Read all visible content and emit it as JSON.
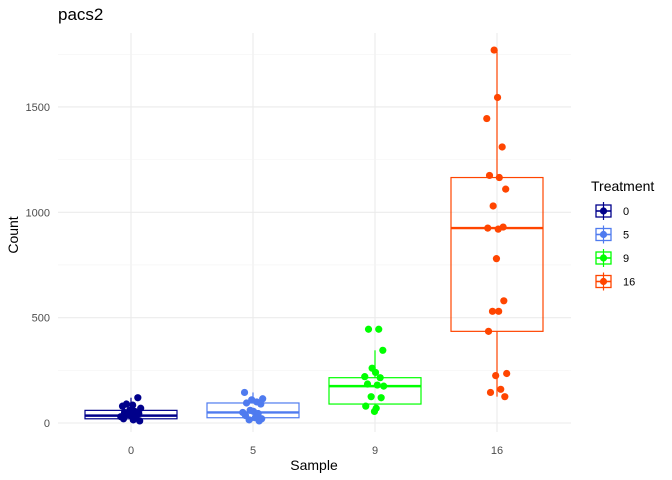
{
  "chart_data": {
    "type": "boxplot",
    "title": "pacs2",
    "xlabel": "Sample",
    "ylabel": "Count",
    "categories": [
      "0",
      "5",
      "9",
      "16"
    ],
    "y_ticks": [
      0,
      500,
      1000,
      1500
    ],
    "ylim": [
      -10,
      1790
    ],
    "grid": true,
    "legend": {
      "title": "Treatment",
      "position": "right",
      "entries": [
        "0",
        "5",
        "9",
        "16"
      ]
    },
    "colors": [
      "#00008B",
      "#4F7BEF",
      "#00FF00",
      "#FF4500"
    ],
    "boxes": [
      {
        "q1": 20,
        "median": 35,
        "q3": 60,
        "whisker_low": 5,
        "whisker_high": 120
      },
      {
        "q1": 25,
        "median": 50,
        "q3": 95,
        "whisker_low": 10,
        "whisker_high": 145
      },
      {
        "q1": 90,
        "median": 175,
        "q3": 215,
        "whisker_low": 55,
        "whisker_high": 345
      },
      {
        "q1": 435,
        "median": 925,
        "q3": 1165,
        "whisker_low": 125,
        "whisker_high": 1770
      }
    ],
    "points": [
      [
        120,
        90,
        85,
        80,
        70,
        60,
        55,
        50,
        45,
        40,
        35,
        30,
        25,
        20,
        15,
        10
      ],
      [
        145,
        115,
        110,
        100,
        95,
        90,
        60,
        55,
        50,
        45,
        35,
        25,
        20,
        15,
        10
      ],
      [
        445,
        445,
        345,
        260,
        240,
        220,
        215,
        185,
        180,
        175,
        125,
        120,
        80,
        70,
        55
      ],
      [
        1770,
        1545,
        1445,
        1310,
        1175,
        1165,
        1110,
        1030,
        930,
        925,
        920,
        780,
        580,
        530,
        530,
        435,
        235,
        225,
        160,
        145,
        125
      ]
    ]
  }
}
